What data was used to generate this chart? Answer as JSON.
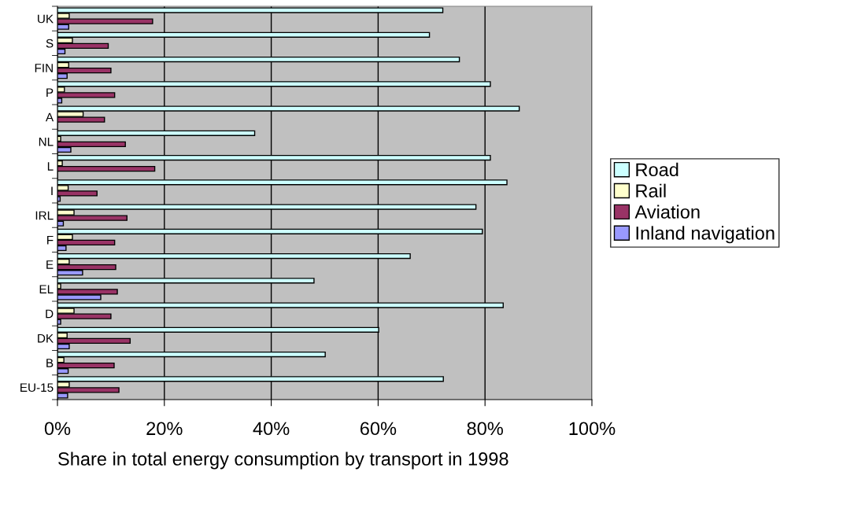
{
  "chart_data": {
    "type": "bar",
    "orientation": "horizontal",
    "xlabel": "Share in total energy consumption by transport in 1998",
    "categories": [
      "UK",
      "S",
      "FIN",
      "P",
      "A",
      "NL",
      "L",
      "I",
      "IRL",
      "F",
      "E",
      "EL",
      "D",
      "DK",
      "B",
      "EU-15"
    ],
    "series": [
      {
        "name": "Road",
        "color": "#ccffff",
        "values": [
          72.1,
          69.6,
          75.2,
          81.0,
          86.4,
          36.9,
          81.0,
          84.1,
          78.3,
          79.5,
          66.0,
          48.0,
          83.4,
          60.1,
          50.1,
          72.2
        ]
      },
      {
        "name": "Rail",
        "color": "#ffffcc",
        "values": [
          2.2,
          2.8,
          2.1,
          1.3,
          4.8,
          0.6,
          0.9,
          2.0,
          3.1,
          2.8,
          2.2,
          0.6,
          3.1,
          1.8,
          1.2,
          2.2
        ]
      },
      {
        "name": "Aviation",
        "color": "#993366",
        "values": [
          17.8,
          9.5,
          10.0,
          10.7,
          8.8,
          12.7,
          18.2,
          7.4,
          13.0,
          10.7,
          10.9,
          11.2,
          10.0,
          13.6,
          10.6,
          11.5
        ]
      },
      {
        "name": "Inland navigation",
        "color": "#9999ff",
        "values": [
          2.1,
          1.4,
          1.8,
          0.8,
          null,
          2.5,
          null,
          0.5,
          1.1,
          1.6,
          4.7,
          8.1,
          0.6,
          2.2,
          2.0,
          1.9
        ]
      }
    ],
    "xlim": [
      0,
      100
    ],
    "xticks": [
      {
        "value": 0,
        "label": "0%"
      },
      {
        "value": 20,
        "label": "20%"
      },
      {
        "value": 40,
        "label": "40%"
      },
      {
        "value": 60,
        "label": "60%"
      },
      {
        "value": 80,
        "label": "80%"
      },
      {
        "value": 100,
        "label": "100%"
      }
    ],
    "grid": "x",
    "legend": "right"
  }
}
